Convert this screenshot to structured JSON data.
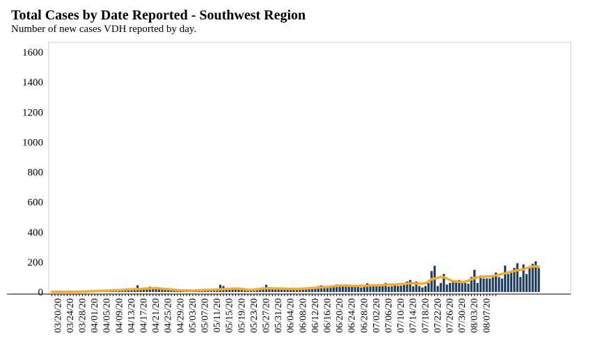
{
  "header": {
    "title": "Total Cases by Date Reported - Southwest Region",
    "subtitle": "Number of new cases VDH reported by day."
  },
  "colors": {
    "bar": "#1f3d5c",
    "avg": "#f5a92e",
    "frame": "#cccccc"
  },
  "chart_data": {
    "type": "bar",
    "title": "Total Cases by Date Reported - Southwest Region",
    "subtitle": "Number of new cases VDH reported by day.",
    "ylim": [
      0,
      1600
    ],
    "yticks": [
      0,
      200,
      400,
      600,
      800,
      1000,
      1200,
      1400,
      1600
    ],
    "x_range": [
      "03/18/20",
      "08/10/20"
    ],
    "xtick_labels": [
      "03/20/20",
      "03/24/20",
      "03/28/20",
      "04/01/20",
      "04/05/20",
      "04/09/20",
      "04/13/20",
      "04/17/20",
      "04/21/20",
      "04/25/20",
      "04/29/20",
      "05/03/20",
      "05/07/20",
      "05/11/20",
      "05/15/20",
      "05/19/20",
      "05/23/20",
      "05/27/20",
      "05/31/20",
      "06/04/20",
      "06/08/20",
      "06/12/20",
      "06/16/20",
      "06/20/20",
      "06/24/20",
      "06/28/20",
      "07/02/20",
      "07/06/20",
      "07/10/20",
      "07/14/20",
      "07/18/20",
      "07/22/20",
      "07/26/20",
      "07/30/20",
      "08/03/20",
      "08/07/20"
    ],
    "grid": false,
    "series": [
      {
        "kind": "bar",
        "start_date": "03/18/20",
        "values": [
          0,
          0,
          0,
          0,
          1,
          1,
          1,
          2,
          2,
          2,
          3,
          3,
          4,
          4,
          5,
          6,
          5,
          7,
          8,
          8,
          9,
          10,
          10,
          10,
          12,
          12,
          14,
          15,
          45,
          15,
          18,
          20,
          35,
          30,
          22,
          28,
          24,
          25,
          18,
          15,
          14,
          10,
          8,
          10,
          9,
          12,
          10,
          8,
          12,
          16,
          18,
          14,
          12,
          15,
          16,
          48,
          40,
          26,
          24,
          22,
          28,
          20,
          24,
          18,
          16,
          10,
          8,
          20,
          22,
          26,
          48,
          26,
          24,
          22,
          28,
          20,
          24,
          20,
          18,
          20,
          18,
          16,
          20,
          24,
          22,
          20,
          30,
          40,
          44,
          26,
          30,
          28,
          38,
          50,
          40,
          38,
          44,
          45,
          40,
          42,
          36,
          30,
          36,
          58,
          48,
          40,
          44,
          40,
          40,
          60,
          36,
          38,
          56,
          40,
          42,
          46,
          70,
          80,
          38,
          70,
          40,
          30,
          40,
          60,
          140,
          175,
          40,
          60,
          120,
          50,
          60,
          70,
          62,
          80,
          70,
          60,
          55,
          100,
          148,
          60,
          110,
          90,
          90,
          90,
          110,
          130,
          100,
          90,
          176,
          120,
          130,
          160,
          192,
          100,
          184,
          120,
          172,
          188,
          205,
          160,
          0,
          0,
          0,
          0,
          0,
          0,
          0
        ]
      },
      {
        "kind": "line",
        "start_date": "03/18/20",
        "values": [
          1,
          1,
          1,
          1,
          1,
          1,
          2,
          2,
          2,
          2,
          3,
          3,
          4,
          5,
          6,
          7,
          7,
          8,
          9,
          10,
          11,
          12,
          13,
          14,
          15,
          17,
          18,
          19,
          20,
          20,
          22,
          23,
          23,
          25,
          26,
          24,
          22,
          20,
          19,
          17,
          15,
          13,
          12,
          11,
          10,
          9,
          9,
          11,
          12,
          13,
          14,
          14,
          14,
          15,
          16,
          18,
          19,
          21,
          21,
          22,
          23,
          22,
          20,
          18,
          15,
          14,
          16,
          18,
          21,
          23,
          24,
          25,
          24,
          23,
          23,
          22,
          22,
          21,
          21,
          21,
          20,
          21,
          22,
          23,
          25,
          27,
          28,
          30,
          31,
          32,
          33,
          35,
          38,
          40,
          42,
          43,
          43,
          42,
          41,
          40,
          40,
          41,
          41,
          42,
          43,
          44,
          44,
          45,
          46,
          48,
          49,
          50,
          50,
          51,
          52,
          54,
          56,
          58,
          58,
          57,
          56,
          56,
          58,
          70,
          85,
          90,
          95,
          100,
          98,
          90,
          80,
          72,
          70,
          68,
          66,
          70,
          75,
          85,
          92,
          97,
          100,
          102,
          103,
          104,
          106,
          110,
          115,
          120,
          125,
          130,
          135,
          140,
          145,
          148,
          152,
          158,
          165,
          170,
          172,
          170
        ]
      }
    ]
  }
}
